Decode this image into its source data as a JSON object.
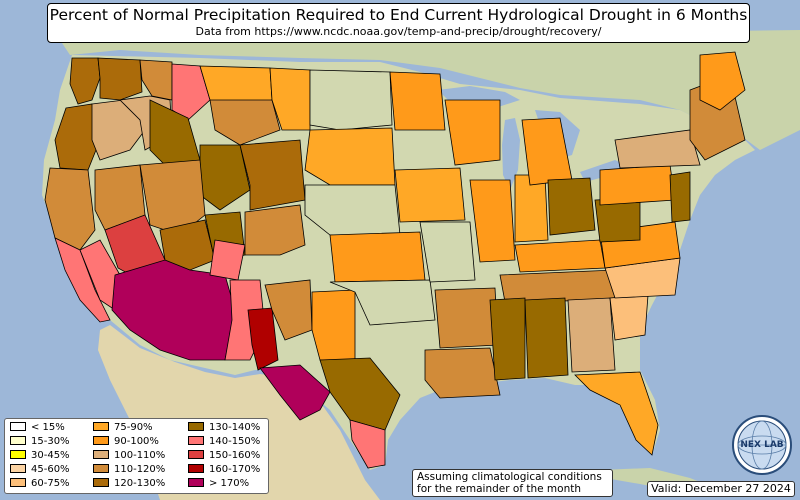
{
  "title": "Percent of Normal Precipitation Required to End Current Hydrological Drought in 6 Months",
  "subtitle": "Data from https://www.ncdc.noaa.gov/temp-and-precip/drought/recovery/",
  "note_line1": "Assuming climatological conditions",
  "note_line2": "for the remainder of the month",
  "valid": "Valid: December 27 2024",
  "logo": {
    "icon": "nexlab-globe-logo",
    "text": "NEX LAB"
  },
  "legend": [
    {
      "label": "< 15%",
      "color": "#ffffff"
    },
    {
      "label": "15-30%",
      "color": "#ffffcc"
    },
    {
      "label": "30-45%",
      "color": "#ffff00"
    },
    {
      "label": "45-60%",
      "color": "#fcd4a4"
    },
    {
      "label": "60-75%",
      "color": "#fcbf7a"
    },
    {
      "label": "75-90%",
      "color": "#ffa826"
    },
    {
      "label": "90-100%",
      "color": "#ff9a1a"
    },
    {
      "label": "100-110%",
      "color": "#dcae79"
    },
    {
      "label": "110-120%",
      "color": "#d18b39"
    },
    {
      "label": "120-130%",
      "color": "#ab6b0a"
    },
    {
      "label": "130-140%",
      "color": "#986a00"
    },
    {
      "label": "140-150%",
      "color": "#ff7575"
    },
    {
      "label": "150-160%",
      "color": "#dc4040"
    },
    {
      "label": "160-170%",
      "color": "#b00000"
    },
    {
      "label": "> 170%",
      "color": "#b0005a"
    }
  ],
  "colors": {
    "ocean": "#9db7d8",
    "land": "#d2d8b0",
    "mountains": "#9fb182",
    "desert": "#e2d6ac"
  }
}
